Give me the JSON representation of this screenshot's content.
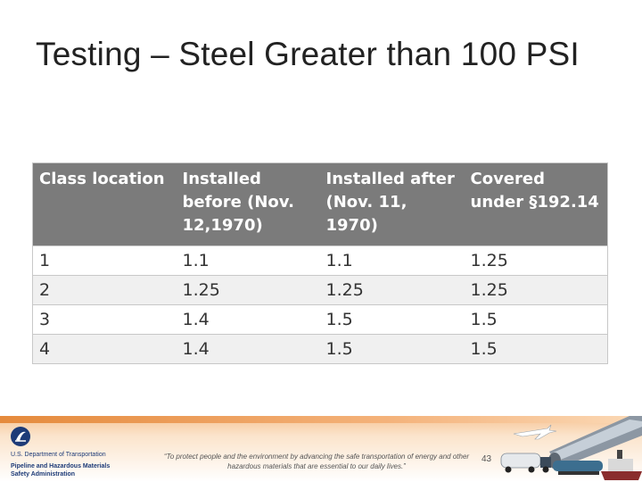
{
  "slide": {
    "title": "Testing – Steel Greater than 100 PSI",
    "page_number": "43"
  },
  "table": {
    "headers": [
      "Class location",
      "Installed before (Nov. 12,1970)",
      "Installed after (Nov. 11, 1970)",
      "Covered under §192.14"
    ],
    "rows": [
      [
        "1",
        "1.1",
        "1.1",
        "1.25"
      ],
      [
        "2",
        "1.25",
        "1.25",
        "1.25"
      ],
      [
        "3",
        "1.4",
        "1.5",
        "1.5"
      ],
      [
        "4",
        "1.4",
        "1.5",
        "1.5"
      ]
    ]
  },
  "footer": {
    "agency_line1": "U.S. Department of Transportation",
    "agency_line2": "Pipeline and Hazardous Materials",
    "agency_line3": "Safety Administration",
    "quote": "“To protect people and the environment by advancing the safe transportation of energy and other hazardous materials that are essential to our daily lives.”"
  },
  "colors": {
    "header_bg": "#7b7b7b",
    "accent_orange": "#e58a3c",
    "dot_blue": "#1d3b78"
  },
  "icons": [
    "dot-logo-icon",
    "airplane-icon",
    "tanker-truck-icon",
    "pipeline-icon",
    "ship-icon"
  ]
}
